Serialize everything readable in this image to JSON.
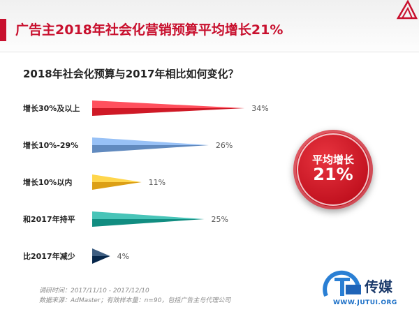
{
  "page": {
    "title": "广告主2018年社会化营销预算平均增长21%"
  },
  "chart_data": {
    "type": "bar",
    "orientation": "horizontal",
    "title": "2018年社会化预算与2017年相比如何变化？",
    "categories": [
      "增长30%及以上",
      "增长10%-29%",
      "增长10%以内",
      "和2017年持平",
      "比2017年减少"
    ],
    "values": [
      34,
      26,
      11,
      25,
      4
    ],
    "value_labels": [
      "34%",
      "26%",
      "11%",
      "25%",
      "4%"
    ],
    "unit": "%",
    "colors": [
      "#e8323f",
      "#7aa3d8",
      "#f5b82e",
      "#2aa69a",
      "#1f3f63"
    ],
    "grid": false,
    "legend": "none"
  },
  "highlight": {
    "label": "平均增长",
    "value": "21%",
    "color": "#c8102e"
  },
  "footnotes": {
    "line1": "调研时间：2017/11/10 - 2017/12/10",
    "line2": "数据来源：AdMaster；有效样本量：n=90，包括广告主与代理公司"
  },
  "watermark": {
    "brand_cn": "传媒",
    "url": "WWW.JUTUI.ORG"
  }
}
